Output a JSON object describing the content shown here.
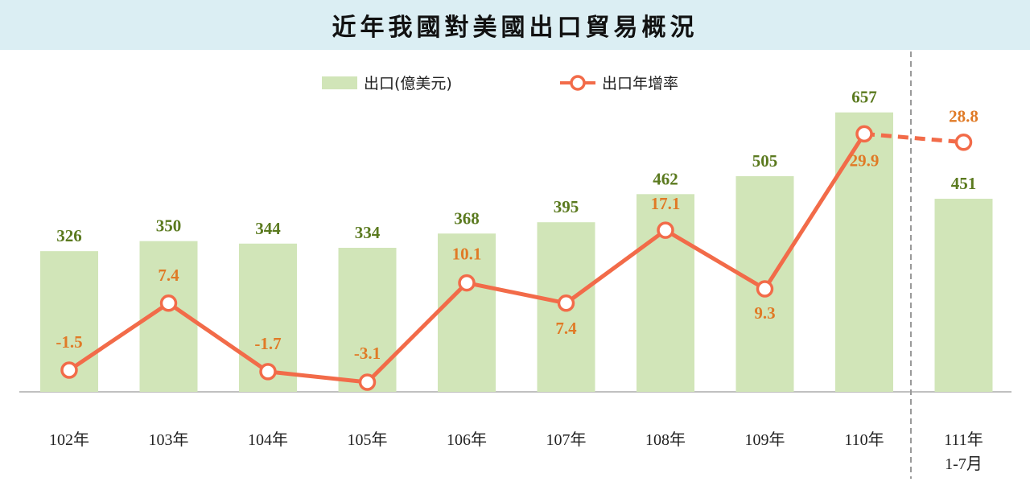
{
  "chart_data": {
    "type": "bar",
    "title": "近年我國對美國出口貿易概況",
    "categories": [
      "102年",
      "103年",
      "104年",
      "105年",
      "106年",
      "107年",
      "108年",
      "109年",
      "110年",
      "111年\n1-7月"
    ],
    "series": [
      {
        "name": "出口(億美元)",
        "type": "bar",
        "values": [
          326,
          350,
          344,
          334,
          368,
          395,
          462,
          505,
          657,
          451
        ],
        "color": "#d1e5b8",
        "label_color": "#5b7a1f"
      },
      {
        "name": "出口年增率",
        "type": "line",
        "values": [
          -1.5,
          7.4,
          -1.7,
          -3.1,
          10.1,
          7.4,
          17.1,
          9.3,
          29.9,
          28.8
        ],
        "labels": [
          "-1.5",
          "7.4",
          "-1.7",
          "-3.1",
          "10.1",
          "7.4",
          "17.1",
          "9.3",
          "29.9",
          "28.8"
        ],
        "color": "#f26b49",
        "label_color": "#e07a26",
        "dashed_last_segment": true
      }
    ],
    "legend": "top-center",
    "grid": false
  }
}
